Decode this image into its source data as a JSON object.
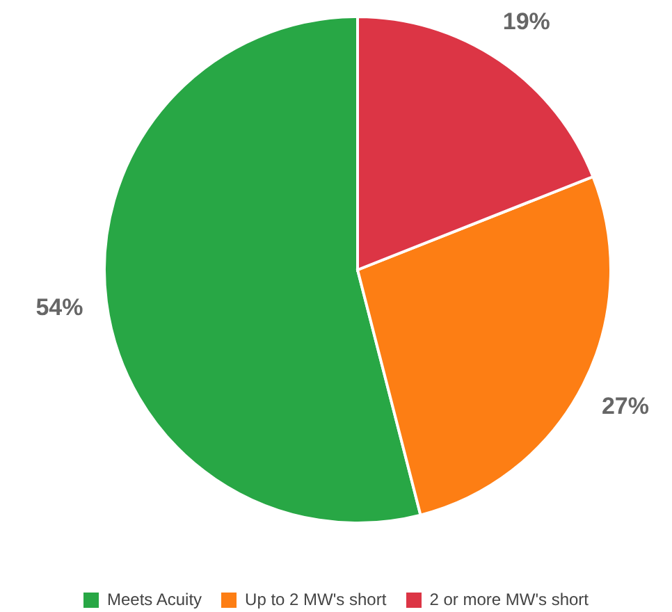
{
  "chart_data": {
    "type": "pie",
    "categories": [
      "Meets Acuity",
      "Up to 2 MW's short",
      "2 or more MW's short"
    ],
    "values": [
      54,
      27,
      19
    ],
    "colors": [
      "#28a745",
      "#fd7e14",
      "#dc3545"
    ],
    "value_labels": [
      "54%",
      "27%",
      "19%"
    ],
    "legend": "bottom"
  }
}
